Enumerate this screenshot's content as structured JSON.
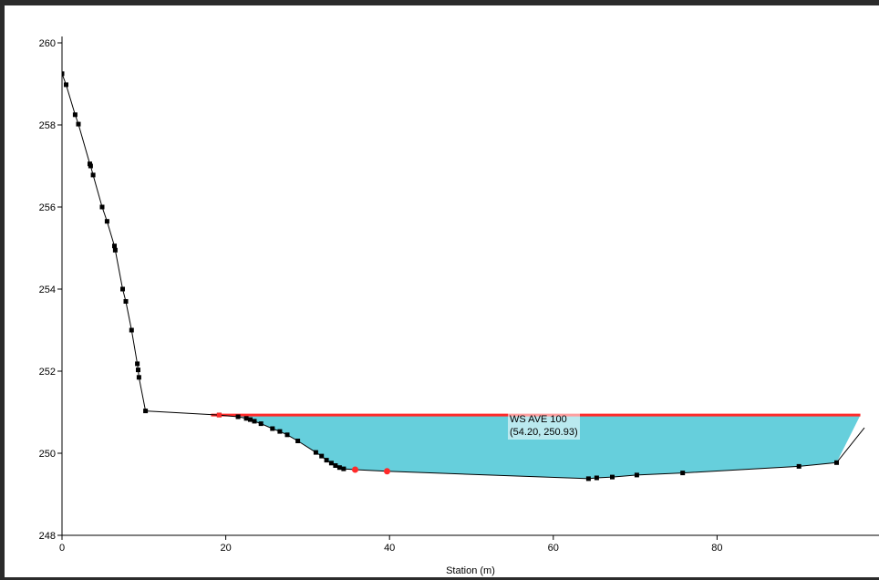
{
  "chart_data": {
    "type": "line",
    "title": "",
    "xlabel": "Station (m)",
    "ylabel": "",
    "xlim": [
      0,
      98
    ],
    "ylim": [
      248,
      260
    ],
    "x_ticks": [
      "0",
      "20",
      "40",
      "60",
      "80"
    ],
    "y_ticks": [
      "248",
      "250",
      "252",
      "254",
      "256",
      "258",
      "260"
    ],
    "colors": {
      "ground": "#000000",
      "water_fill": "#66cfdc",
      "water_surface": "#ff2a2a",
      "bank_points": "#ff2a2a",
      "frame": "#2b2b2b"
    },
    "ground": [
      [
        0.0,
        259.25
      ],
      [
        0.5,
        258.98
      ],
      [
        1.6,
        258.25
      ],
      [
        2.0,
        258.02
      ],
      [
        3.4,
        257.05
      ],
      [
        3.5,
        257.0
      ],
      [
        3.8,
        256.78
      ],
      [
        4.9,
        256.0
      ],
      [
        5.5,
        255.65
      ],
      [
        6.4,
        255.05
      ],
      [
        6.5,
        254.95
      ],
      [
        7.4,
        254.0
      ],
      [
        7.8,
        253.7
      ],
      [
        8.5,
        253.0
      ],
      [
        9.2,
        252.18
      ],
      [
        9.3,
        252.03
      ],
      [
        9.4,
        251.85
      ],
      [
        10.2,
        251.03
      ],
      [
        19.2,
        250.93
      ],
      [
        21.5,
        250.89
      ],
      [
        22.5,
        250.85
      ],
      [
        23.0,
        250.82
      ],
      [
        23.5,
        250.78
      ],
      [
        24.3,
        250.72
      ],
      [
        25.7,
        250.6
      ],
      [
        26.6,
        250.53
      ],
      [
        27.5,
        250.45
      ],
      [
        28.8,
        250.3
      ],
      [
        31.0,
        250.02
      ],
      [
        31.7,
        249.93
      ],
      [
        32.3,
        249.83
      ],
      [
        32.9,
        249.76
      ],
      [
        33.4,
        249.7
      ],
      [
        33.9,
        249.65
      ],
      [
        34.4,
        249.62
      ],
      [
        35.8,
        249.6
      ],
      [
        39.7,
        249.56
      ],
      [
        64.3,
        249.38
      ],
      [
        65.3,
        249.4
      ],
      [
        67.2,
        249.42
      ],
      [
        70.2,
        249.47
      ],
      [
        75.8,
        249.52
      ],
      [
        90.0,
        249.68
      ],
      [
        94.6,
        249.77
      ],
      [
        98.0,
        250.62
      ]
    ],
    "bank_stations": [
      [
        19.2,
        250.93
      ],
      [
        35.8,
        249.6
      ],
      [
        39.7,
        249.56
      ]
    ],
    "series": [
      {
        "name": "WS AVE 100",
        "type": "water_surface",
        "elevation": 250.93,
        "x_range": [
          18.2,
          97.5
        ]
      }
    ],
    "annotation": {
      "line1": "WS AVE 100",
      "line2": "(54.20, 250.93)"
    },
    "grid": false,
    "legend": "none"
  }
}
